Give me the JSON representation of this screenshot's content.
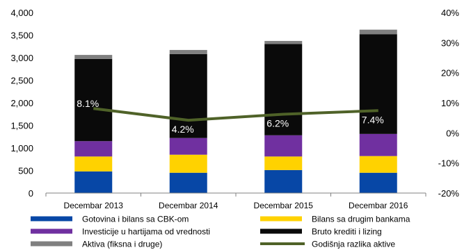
{
  "chart_data": {
    "type": "bar",
    "stacked": true,
    "categories": [
      "Decembar 2013",
      "Decembar 2014",
      "Decembar 2015",
      "Decembar 2016"
    ],
    "series": [
      {
        "name": "Gotovina i bilans sa CBK-om",
        "color": "#0747a6",
        "values": [
          480,
          450,
          510,
          450
        ]
      },
      {
        "name": "Bilans sa drugim bankama",
        "color": "#ffd200",
        "values": [
          330,
          400,
          300,
          370
        ]
      },
      {
        "name": "Investicije u hartijama od vrednosti",
        "color": "#7030a0",
        "values": [
          340,
          370,
          470,
          490
        ]
      },
      {
        "name": "Bruto krediti i lizing",
        "color": "#0a0a0a",
        "values": [
          1820,
          1860,
          2020,
          2210
        ]
      },
      {
        "name": "Aktiva (fiksna i druge)",
        "color": "#808080",
        "values": [
          90,
          90,
          70,
          100
        ]
      }
    ],
    "line_series": {
      "name": "Godišnja razlika aktive",
      "color": "#4f6228",
      "axis": "right",
      "values": [
        8.1,
        4.2,
        6.2,
        7.4
      ],
      "labels": [
        "8.1%",
        "4.2%",
        "6.2%",
        "7.4%"
      ]
    },
    "y_left": {
      "min": 0,
      "max": 4000,
      "ticks": [
        "0",
        "500",
        "1,000",
        "1,500",
        "2,000",
        "2,500",
        "3,000",
        "3,500",
        "4,000"
      ]
    },
    "y_right": {
      "min": -20,
      "max": 40,
      "ticks": [
        "-20%",
        "-10%",
        "0%",
        "10%",
        "20%",
        "30%",
        "40%"
      ]
    },
    "legend_position": "bottom",
    "grid": false
  }
}
